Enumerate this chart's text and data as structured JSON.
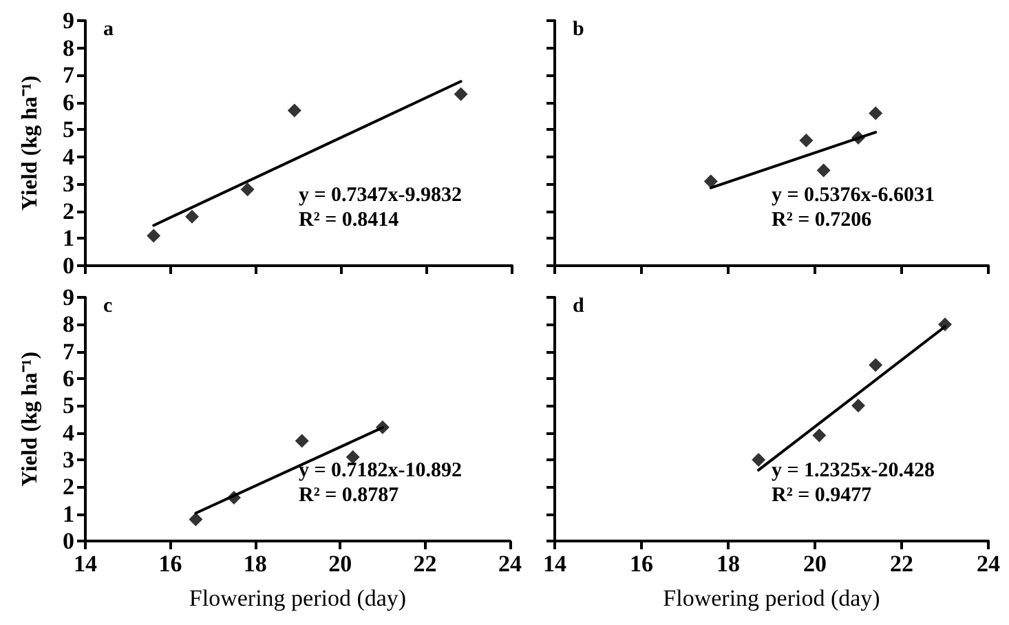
{
  "chart_data": [
    {
      "type": "scatter",
      "title": "a",
      "ylabel": "Yield (kg ha⁻¹)",
      "xlim": [
        14,
        24
      ],
      "xticks": [
        14,
        16,
        18,
        20,
        22,
        24
      ],
      "ylim": [
        0,
        9
      ],
      "yticks": [
        0,
        1,
        2,
        3,
        4,
        5,
        6,
        7,
        8,
        9
      ],
      "tick_labels": "y",
      "grid": false,
      "annotations": [
        "y = 0.7347x-9.9832",
        "R² = 0.8414"
      ],
      "series": [
        {
          "color": "#000000",
          "marker": "diamond",
          "x": [
            15.6,
            16.5,
            17.8,
            18.9,
            22.8
          ],
          "values": [
            1.1,
            1.8,
            2.8,
            5.7,
            6.3
          ]
        },
        {
          "type": "line",
          "color": "#000000",
          "marker": "none",
          "line_style": "solid",
          "x": [
            15.6,
            22.8
          ],
          "values": [
            1.48,
            6.77
          ]
        }
      ]
    },
    {
      "type": "scatter",
      "title": "b",
      "xlim": [
        14,
        24
      ],
      "xticks": [
        14,
        16,
        18,
        20,
        22,
        24
      ],
      "ylim": [
        0,
        9
      ],
      "yticks": [
        0,
        1,
        2,
        3,
        4,
        5,
        6,
        7,
        8,
        9
      ],
      "tick_labels": false,
      "grid": false,
      "annotations": [
        "y = 0.5376x-6.6031",
        "R² = 0.7206"
      ],
      "series": [
        {
          "color": "#000000",
          "marker": "diamond",
          "x": [
            17.6,
            19.8,
            20.2,
            21.0,
            21.4
          ],
          "values": [
            3.1,
            4.6,
            3.5,
            4.7,
            5.6
          ]
        },
        {
          "type": "line",
          "color": "#000000",
          "marker": "none",
          "line_style": "solid",
          "x": [
            17.6,
            21.4
          ],
          "values": [
            2.86,
            4.9
          ]
        }
      ]
    },
    {
      "type": "scatter",
      "title": "c",
      "xlabel": "Flowering period (day)",
      "ylabel": "Yield (kg ha⁻¹)",
      "xlim": [
        14,
        24
      ],
      "xticks": [
        14,
        16,
        18,
        20,
        22,
        24
      ],
      "ylim": [
        0,
        9
      ],
      "yticks": [
        0,
        1,
        2,
        3,
        4,
        5,
        6,
        7,
        8,
        9
      ],
      "grid": false,
      "annotations": [
        "y = 0.7182x-10.892",
        "R² = 0.8787"
      ],
      "series": [
        {
          "color": "#000000",
          "marker": "diamond",
          "x": [
            16.6,
            17.5,
            19.1,
            20.3,
            21.0
          ],
          "values": [
            0.8,
            1.6,
            3.7,
            3.1,
            4.2
          ]
        },
        {
          "type": "line",
          "color": "#000000",
          "marker": "none",
          "line_style": "solid",
          "x": [
            16.6,
            21.0
          ],
          "values": [
            1.03,
            4.19
          ]
        }
      ]
    },
    {
      "type": "scatter",
      "title": "d",
      "xlabel": "Flowering period (day)",
      "xlim": [
        14,
        24
      ],
      "xticks": [
        14,
        16,
        18,
        20,
        22,
        24
      ],
      "ylim": [
        0,
        9
      ],
      "yticks": [
        0,
        1,
        2,
        3,
        4,
        5,
        6,
        7,
        8,
        9
      ],
      "tick_labels": "x",
      "grid": false,
      "annotations": [
        "y = 1.2325x-20.428",
        "R² = 0.9477"
      ],
      "series": [
        {
          "color": "#000000",
          "marker": "diamond",
          "x": [
            18.7,
            20.1,
            21.0,
            21.4,
            23.0
          ],
          "values": [
            3.0,
            3.9,
            5.0,
            6.5,
            8.0
          ]
        },
        {
          "type": "line",
          "color": "#000000",
          "marker": "none",
          "line_style": "solid",
          "x": [
            18.7,
            23.0
          ],
          "values": [
            2.62,
            7.92
          ]
        }
      ]
    }
  ]
}
